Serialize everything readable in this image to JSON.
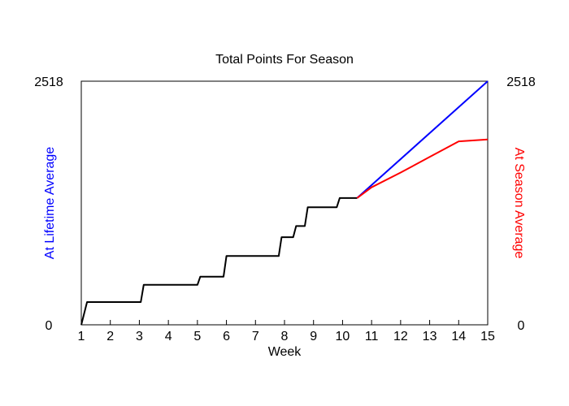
{
  "chart_data": {
    "type": "line",
    "title": "Total Points For Season",
    "xlabel": "Week",
    "ylabel_left": "At Lifetime Average",
    "ylabel_right": "At Season Average",
    "xlim": [
      1,
      15
    ],
    "ylim": [
      0,
      2518
    ],
    "x_ticks": [
      "1",
      "2",
      "3",
      "4",
      "5",
      "6",
      "7",
      "8",
      "9",
      "10",
      "11",
      "12",
      "13",
      "14",
      "15"
    ],
    "y_ticks_left": [
      "0",
      "2518"
    ],
    "y_ticks_right": [
      "0",
      "2518"
    ],
    "grid": false,
    "legend": "none",
    "colors": {
      "actual": "#000000",
      "lifetime": "#0000ff",
      "season": "#ff0000",
      "axis": "#000000"
    },
    "series": [
      {
        "key": "actual",
        "x": [
          1.0,
          1.2,
          3.05,
          3.15,
          5.0,
          5.1,
          5.9,
          6.0,
          7.8,
          7.9,
          8.3,
          8.4,
          8.7,
          8.8,
          9.8,
          9.9,
          10.5
        ],
        "y": [
          0,
          235,
          235,
          413,
          413,
          498,
          498,
          711,
          711,
          906,
          906,
          1021,
          1021,
          1215,
          1215,
          1310,
          1310
        ]
      },
      {
        "key": "lifetime",
        "x": [
          10.5,
          15
        ],
        "y": [
          1310,
          2518
        ]
      },
      {
        "key": "season",
        "x": [
          10.5,
          11,
          12,
          13,
          14,
          15
        ],
        "y": [
          1310,
          1421,
          1574,
          1735,
          1896,
          1915
        ]
      }
    ]
  }
}
